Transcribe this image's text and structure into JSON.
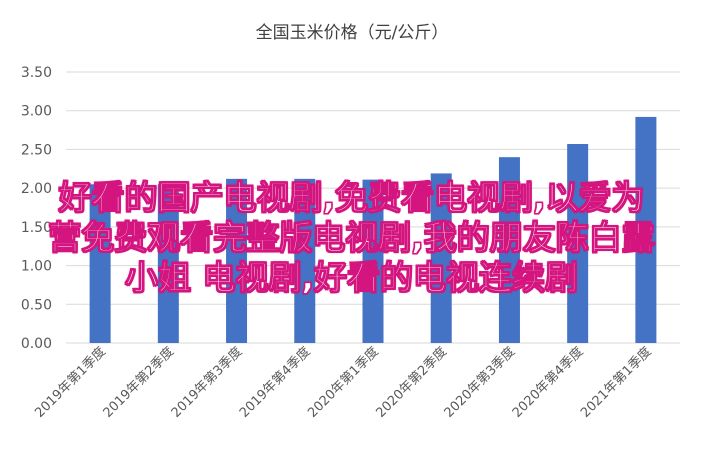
{
  "chart_data": {
    "type": "bar",
    "title": "全国玉米价格（元/公斤）",
    "categories": [
      "2019年第1季度",
      "2019年第2季度",
      "2019年第3季度",
      "2019年第4季度",
      "2020年第1季度",
      "2020年第2季度",
      "2020年第3季度",
      "2020年第4季度",
      "2021年第1季度"
    ],
    "values": [
      2.05,
      2.05,
      2.12,
      2.12,
      2.11,
      2.19,
      2.4,
      2.57,
      2.92
    ],
    "ylim": [
      0,
      3.5
    ],
    "yticks": [
      "0.00",
      "0.50",
      "1.00",
      "1.50",
      "2.00",
      "2.50",
      "3.00",
      "3.50"
    ],
    "grid": true,
    "bar_color": "#4472C4"
  },
  "overlay": {
    "lines": [
      "好看的国产电视剧,免费看电视剧,以爱为",
      "营免费观看完整版电视剧,我的朋友陈白露",
      "小姐 电视剧,好看的电视连续剧"
    ],
    "color": "#d4147f"
  }
}
